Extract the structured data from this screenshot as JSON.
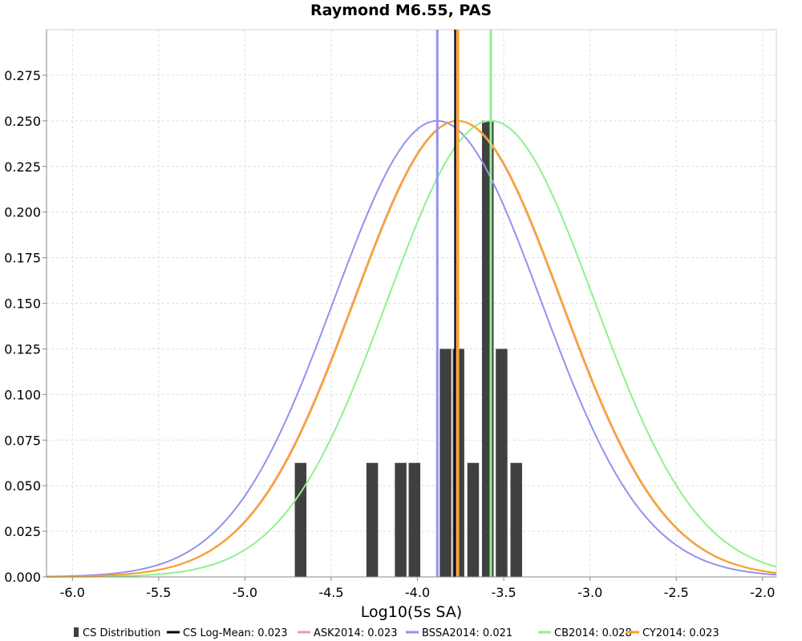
{
  "chart_data": {
    "type": "bar",
    "title": "Raymond M6.55, PAS",
    "xlabel": "Log10(5s SA)",
    "ylabel": "",
    "xlim": [
      -6.15,
      -1.92
    ],
    "ylim": [
      0,
      0.3
    ],
    "x_ticks": [
      -6.0,
      -5.5,
      -5.0,
      -4.5,
      -4.0,
      -3.5,
      -3.0,
      -2.5,
      -2.0
    ],
    "x_tick_labels": [
      "-6.0",
      "-5.5",
      "-5.0",
      "-4.5",
      "-4.0",
      "-3.5",
      "-3.0",
      "-2.5",
      "-2.0"
    ],
    "y_ticks": [
      0,
      0.025,
      0.05,
      0.075,
      0.1,
      0.125,
      0.15,
      0.175,
      0.2,
      0.225,
      0.25,
      0.275
    ],
    "y_tick_labels": [
      "0.000",
      "0.025",
      "0.050",
      "0.075",
      "0.100",
      "0.125",
      "0.150",
      "0.175",
      "0.200",
      "0.225",
      "0.250",
      "0.275"
    ],
    "grid": true,
    "legend_position": "bottom",
    "histogram": {
      "name": "CS Distribution",
      "color": "#404040",
      "bin_width": 0.072,
      "bins": [
        {
          "x": -4.675,
          "value": 0.0625
        },
        {
          "x": -4.26,
          "value": 0.0625
        },
        {
          "x": -4.095,
          "value": 0.0625
        },
        {
          "x": -4.015,
          "value": 0.0625
        },
        {
          "x": -3.835,
          "value": 0.125
        },
        {
          "x": -3.76,
          "value": 0.125
        },
        {
          "x": -3.675,
          "value": 0.0625
        },
        {
          "x": -3.59,
          "value": 0.25
        },
        {
          "x": -3.51,
          "value": 0.125
        },
        {
          "x": -3.425,
          "value": 0.0625
        }
      ]
    },
    "vertical_lines": [
      {
        "name": "CS Log-Mean",
        "x": -3.78,
        "color": "#000000"
      },
      {
        "name": "ASK2014",
        "x": -3.77,
        "color": "#f49c9c"
      },
      {
        "name": "BSSA2014",
        "x": -3.885,
        "color": "#9292f0"
      },
      {
        "name": "CB2014",
        "x": -3.575,
        "color": "#90f090"
      },
      {
        "name": "CY2014",
        "x": -3.765,
        "color": "#f5a623"
      }
    ],
    "series": [
      {
        "name": "ASK2014",
        "mean": -3.77,
        "sigma": 0.6,
        "peak": 0.25,
        "color": "#f49c9c"
      },
      {
        "name": "BSSA2014",
        "mean": -3.885,
        "sigma": 0.6,
        "peak": 0.25,
        "color": "#9292f0"
      },
      {
        "name": "CB2014",
        "mean": -3.575,
        "sigma": 0.6,
        "peak": 0.25,
        "color": "#90f090"
      },
      {
        "name": "CY2014",
        "mean": -3.765,
        "sigma": 0.6,
        "peak": 0.25,
        "color": "#f5a623"
      }
    ],
    "legend": [
      {
        "label": "CS Distribution",
        "kind": "bar",
        "color": "#404040"
      },
      {
        "label": "CS Log-Mean: 0.023",
        "kind": "line",
        "color": "#000000"
      },
      {
        "label": "ASK2014: 0.023",
        "kind": "line",
        "color": "#f49c9c"
      },
      {
        "label": "BSSA2014: 0.021",
        "kind": "line",
        "color": "#9292f0"
      },
      {
        "label": "CB2014: 0.028",
        "kind": "line",
        "color": "#90f090"
      },
      {
        "label": "CY2014: 0.023",
        "kind": "line",
        "color": "#f5a623"
      }
    ]
  }
}
